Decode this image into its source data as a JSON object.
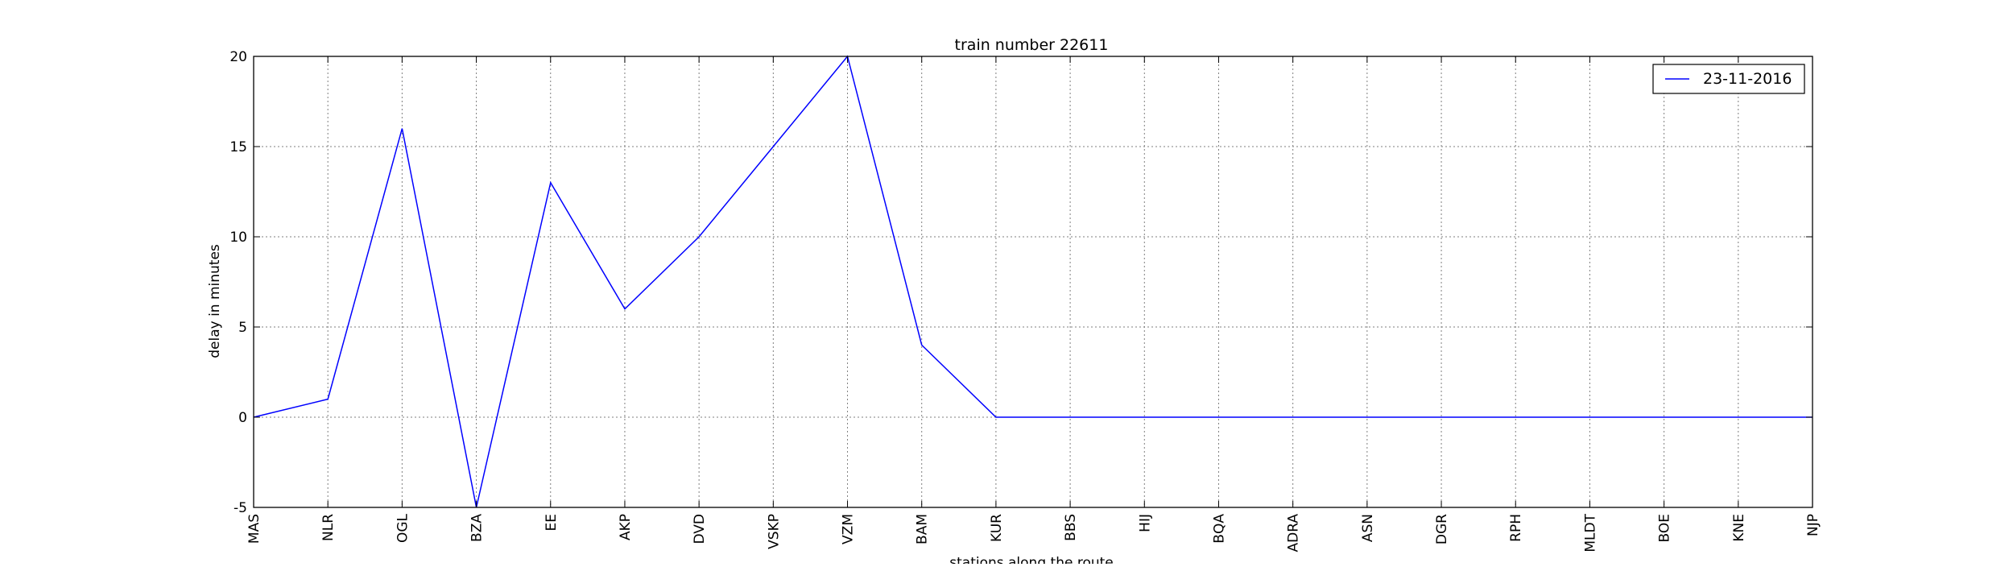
{
  "chart_data": {
    "type": "line",
    "title": "train number 22611",
    "xlabel": "stations along the route",
    "ylabel": "delay in minutes",
    "categories": [
      "MAS",
      "NLR",
      "OGL",
      "BZA",
      "EE",
      "AKP",
      "DVD",
      "VSKP",
      "VZM",
      "BAM",
      "KUR",
      "BBS",
      "HIJ",
      "BQA",
      "ADRA",
      "ASN",
      "DGR",
      "RPH",
      "MLDT",
      "BOE",
      "KNE",
      "NJP"
    ],
    "series": [
      {
        "name": "23-11-2016",
        "color": "#0000ff",
        "values": [
          0,
          1,
          16,
          -5,
          13,
          6,
          10,
          15,
          20,
          4,
          0,
          0,
          0,
          0,
          0,
          0,
          0,
          0,
          0,
          0,
          0,
          0
        ]
      }
    ],
    "ylim": [
      -5,
      20
    ],
    "yticks": [
      -5,
      0,
      5,
      10,
      15,
      20
    ],
    "grid": true,
    "legend": "top-right"
  }
}
